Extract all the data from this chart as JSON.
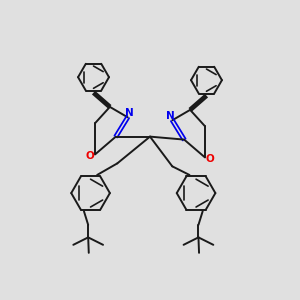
{
  "bg_color": "#e0e0e0",
  "bond_color": "#1a1a1a",
  "N_color": "#0000ee",
  "O_color": "#ee0000",
  "line_width": 1.4,
  "fig_size": [
    3.0,
    3.0
  ],
  "dpi": 100,
  "xlim": [
    0,
    10
  ],
  "ylim": [
    0,
    10
  ]
}
